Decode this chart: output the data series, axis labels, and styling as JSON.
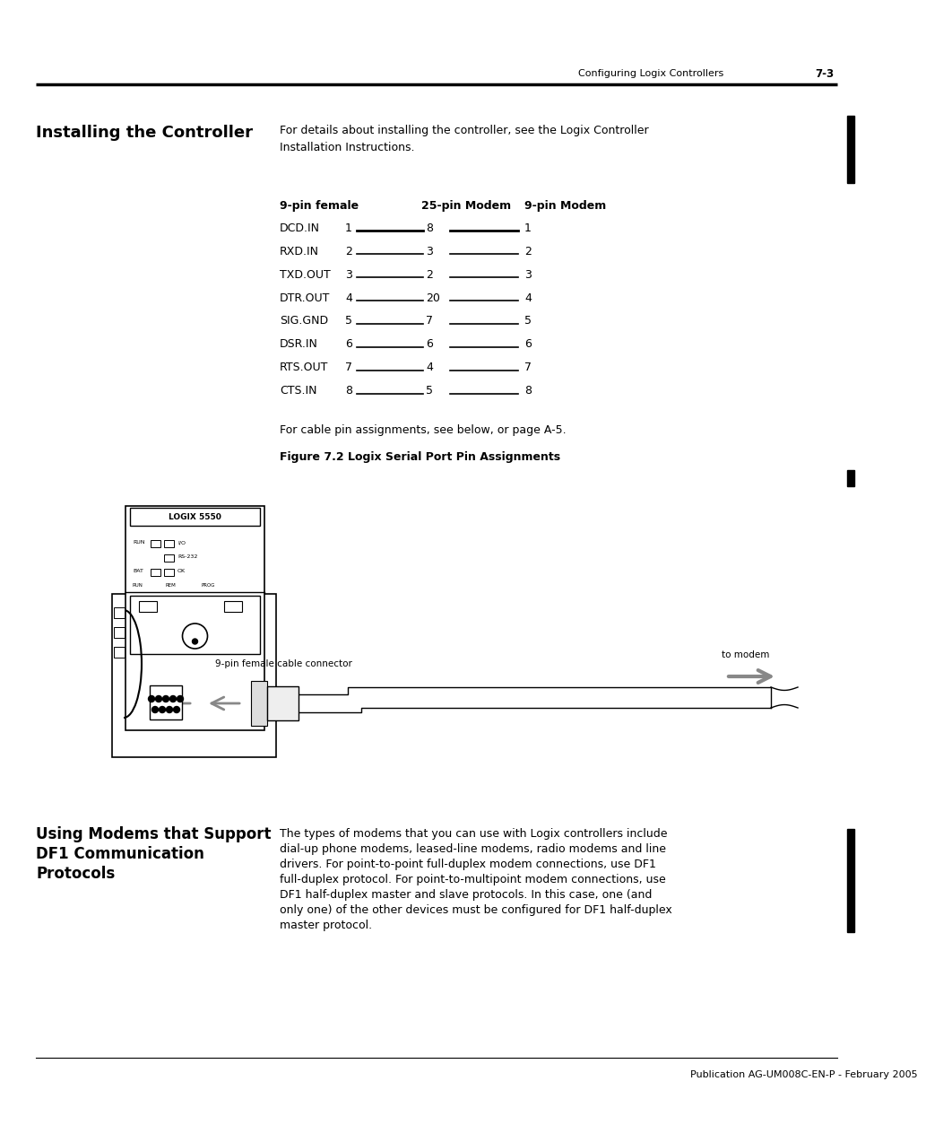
{
  "page_header_text": "Configuring Logix Controllers",
  "page_number": "7-3",
  "section_title": "Installing the Controller",
  "section_body_line1": "For details about installing the controller, see the Logix Controller",
  "section_body_line2": "Installation Instructions.",
  "table_header": [
    "9-pin female",
    "25-pin Modem",
    "9-pin Modem"
  ],
  "table_rows": [
    [
      "DCD.IN",
      "1",
      "8",
      "1"
    ],
    [
      "RXD.IN",
      "2",
      "3",
      "2"
    ],
    [
      "TXD.OUT",
      "3",
      "2",
      "3"
    ],
    [
      "DTR.OUT",
      "4",
      "20",
      "4"
    ],
    [
      "SIG.GND",
      "5",
      "7",
      "5"
    ],
    [
      "DSR.IN",
      "6",
      "6",
      "6"
    ],
    [
      "RTS.OUT",
      "7",
      "4",
      "7"
    ],
    [
      "CTS.IN",
      "8",
      "5",
      "8"
    ]
  ],
  "cable_text": "For cable pin assignments, see below, or page A-5.",
  "figure_caption": "Figure 7.2 Logix Serial Port Pin Assignments",
  "connector_label": "9-pin female cable connector",
  "modem_label": "to modem",
  "section2_title_lines": [
    "Using Modems that Support",
    "DF1 Communication",
    "Protocols"
  ],
  "section2_body": "The types of modems that you can use with Logix controllers include\ndial-up phone modems, leased-line modems, radio modems and line\ndrivers. For point-to-point full-duplex modem connections, use DF1\nfull-duplex protocol. For point-to-multipoint modem connections, use\nDF1 half-duplex master and slave protocols. In this case, one (and\nonly one) of the other devices must be configured for DF1 half-duplex\nmaster protocol.",
  "footer_text": "Publication AG-UM008C-EN-P - February 2005",
  "bg_color": "#ffffff",
  "text_color": "#000000",
  "gray_arrow_color": "#888888",
  "line_color": "#000000",
  "margin_bar_color": "#000000"
}
